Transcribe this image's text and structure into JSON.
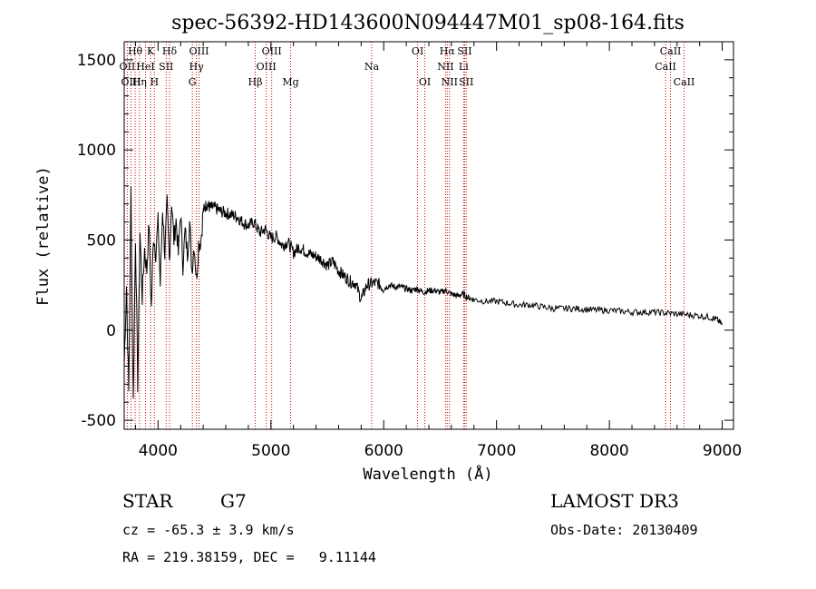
{
  "chart_data": {
    "type": "line",
    "title": "spec-56392-HD143600N094447M01_sp08-164.fits",
    "xlabel": "Wavelength (Å)",
    "ylabel": "Flux (relative)",
    "xlim": [
      3700,
      9100
    ],
    "ylim": [
      -550,
      1600
    ],
    "x_ticks": [
      4000,
      5000,
      6000,
      7000,
      8000,
      9000
    ],
    "y_ticks": [
      -500,
      0,
      500,
      1000,
      1500
    ],
    "series": [
      {
        "name": "flux",
        "color": "#000000",
        "x": [
          3700,
          3720,
          3740,
          3760,
          3780,
          3800,
          3820,
          3840,
          3860,
          3880,
          3900,
          3920,
          3940,
          3960,
          3980,
          4000,
          4020,
          4040,
          4060,
          4080,
          4100,
          4120,
          4140,
          4160,
          4180,
          4200,
          4220,
          4240,
          4260,
          4280,
          4300,
          4320,
          4340,
          4360,
          4380,
          4400,
          4430,
          4460,
          4500,
          4550,
          4600,
          4650,
          4700,
          4750,
          4800,
          4850,
          4900,
          4950,
          5000,
          5050,
          5100,
          5150,
          5200,
          5250,
          5300,
          5350,
          5400,
          5450,
          5500,
          5550,
          5600,
          5650,
          5700,
          5750,
          5800,
          5850,
          5900,
          5950,
          6000,
          6050,
          6100,
          6150,
          6200,
          6250,
          6300,
          6350,
          6400,
          6450,
          6500,
          6550,
          6600,
          6650,
          6700,
          6750,
          6800,
          6900,
          7000,
          7100,
          7200,
          7300,
          7400,
          7500,
          7600,
          7700,
          7800,
          7900,
          8000,
          8100,
          8200,
          8300,
          8400,
          8500,
          8600,
          8700,
          8800,
          8900,
          8950,
          9000
        ],
        "y": [
          -200,
          250,
          -350,
          780,
          -400,
          520,
          -300,
          550,
          180,
          450,
          330,
          600,
          120,
          530,
          430,
          600,
          250,
          680,
          420,
          700,
          380,
          720,
          500,
          610,
          420,
          660,
          360,
          550,
          420,
          600,
          330,
          480,
          280,
          480,
          500,
          660,
          700,
          680,
          680,
          660,
          650,
          640,
          630,
          600,
          580,
          600,
          540,
          560,
          510,
          520,
          470,
          490,
          430,
          460,
          440,
          420,
          410,
          390,
          360,
          380,
          330,
          300,
          270,
          260,
          170,
          250,
          260,
          260,
          230,
          250,
          240,
          240,
          230,
          220,
          230,
          210,
          220,
          220,
          210,
          220,
          200,
          190,
          200,
          180,
          170,
          160,
          160,
          150,
          140,
          140,
          130,
          120,
          120,
          120,
          115,
          110,
          110,
          105,
          100,
          100,
          100,
          95,
          90,
          85,
          80,
          70,
          60,
          30
        ]
      }
    ],
    "emission_lines": [
      {
        "label": "Hθ",
        "wavelength": 3797,
        "row": 0
      },
      {
        "label": "K",
        "wavelength": 3934,
        "row": 0
      },
      {
        "label": "Hδ",
        "wavelength": 4102,
        "row": 0
      },
      {
        "label": "OIII",
        "wavelength": 4363,
        "row": 0
      },
      {
        "label": "OIII",
        "wavelength": 5007,
        "row": 0
      },
      {
        "label": "OI",
        "wavelength": 6300,
        "row": 0
      },
      {
        "label": "Hα",
        "wavelength": 6563,
        "row": 0
      },
      {
        "label": "SII",
        "wavelength": 6717,
        "row": 0
      },
      {
        "label": "CaII",
        "wavelength": 8542,
        "row": 0
      },
      {
        "label": "OII",
        "wavelength": 3727,
        "row": 1
      },
      {
        "label": "HeI",
        "wavelength": 3889,
        "row": 1
      },
      {
        "label": "SII",
        "wavelength": 4072,
        "row": 1
      },
      {
        "label": "Hγ",
        "wavelength": 4340,
        "row": 1
      },
      {
        "label": "OIII",
        "wavelength": 4959,
        "row": 1
      },
      {
        "label": "Na",
        "wavelength": 5893,
        "row": 1
      },
      {
        "label": "NII",
        "wavelength": 6548,
        "row": 1
      },
      {
        "label": "Li",
        "wavelength": 6708,
        "row": 1
      },
      {
        "label": "CaII",
        "wavelength": 8498,
        "row": 1
      },
      {
        "label": "OIII",
        "wavelength": 3760,
        "row": 2
      },
      {
        "label": "Hη",
        "wavelength": 3835,
        "row": 2
      },
      {
        "label": "H",
        "wavelength": 3968,
        "row": 2
      },
      {
        "label": "G",
        "wavelength": 4304,
        "row": 2
      },
      {
        "label": "Hβ",
        "wavelength": 4861,
        "row": 2
      },
      {
        "label": "Mg",
        "wavelength": 5175,
        "row": 2
      },
      {
        "label": "OI",
        "wavelength": 6364,
        "row": 2
      },
      {
        "label": "NII",
        "wavelength": 6583,
        "row": 2
      },
      {
        "label": "SII",
        "wavelength": 6731,
        "row": 2
      },
      {
        "label": "CaII",
        "wavelength": 8662,
        "row": 2
      }
    ],
    "line_color": "#cc0000"
  },
  "info": {
    "object_class": "STAR",
    "subclass": "G7",
    "survey": "LAMOST DR3",
    "redshift_text": "cz = -65.3 ± 3.9 km/s",
    "obs_date_text": "Obs-Date: 20130409",
    "coords_text": "RA = 219.38159, DEC =   9.11144"
  }
}
